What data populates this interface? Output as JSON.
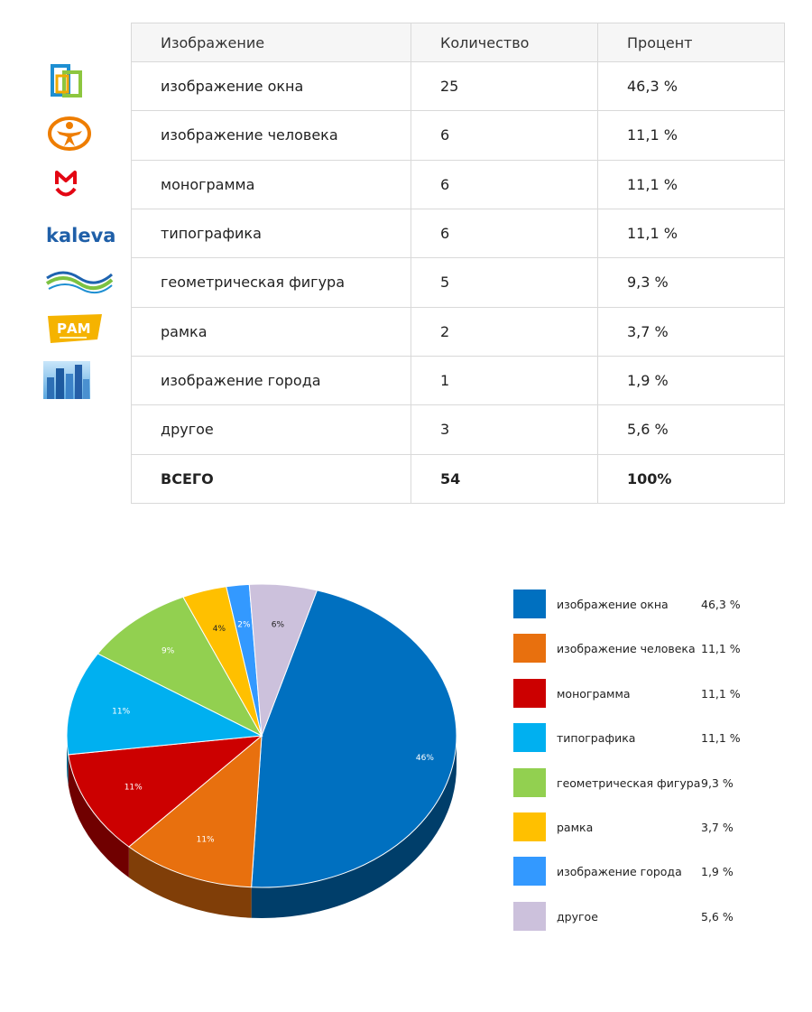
{
  "table": {
    "headers": [
      "Изображение",
      "Количество",
      "Процент"
    ],
    "rows": [
      [
        "изображение окна",
        "25",
        "46,3 %"
      ],
      [
        "изображение человека",
        "6",
        "11,1 %"
      ],
      [
        "монограмма",
        "6",
        "11,1 %"
      ],
      [
        "типографика",
        "6",
        "11,1 %"
      ],
      [
        "геометрическая фигура",
        "5",
        "9,3 %"
      ],
      [
        "рамка",
        "2",
        "3,7 %"
      ],
      [
        "изображение города",
        "1",
        "1,9 %"
      ],
      [
        "другое",
        "3",
        "5,6 %"
      ]
    ],
    "total": [
      "ВСЕГО",
      "54",
      "100%"
    ]
  },
  "logos": [
    {
      "name": "windows-logo",
      "text": ""
    },
    {
      "name": "person-logo",
      "text": ""
    },
    {
      "name": "monogram-logo",
      "text": ""
    },
    {
      "name": "kaleva-logo",
      "text": "kaleva"
    },
    {
      "name": "wave-logo",
      "text": ""
    },
    {
      "name": "ram-logo",
      "text": "РАМ"
    },
    {
      "name": "city-logo",
      "text": ""
    }
  ],
  "chart_data": {
    "type": "pie",
    "title": "",
    "categories": [
      "изображение окна",
      "изображение человека",
      "монограмма",
      "типографика",
      "геометрическая фигура",
      "рамка",
      "изображение города",
      "другое"
    ],
    "values": [
      46.3,
      11.1,
      11.1,
      11.1,
      9.3,
      3.7,
      1.9,
      5.6
    ],
    "slice_labels": [
      "46%",
      "11%",
      "11%",
      "11%",
      "9%",
      "4%",
      "2%",
      "6%"
    ],
    "legend_values": [
      "46,3 %",
      "11,1 %",
      "11,1 %",
      "11,1 %",
      "9,3 %",
      "3,7 %",
      "1,9 %",
      "5,6 %"
    ],
    "colors": [
      "#0070c0",
      "#e8700e",
      "#cc0000",
      "#00b0f0",
      "#92d050",
      "#ffc000",
      "#3399ff",
      "#ccc1dc"
    ],
    "legend_position": "right",
    "style": "3d"
  }
}
